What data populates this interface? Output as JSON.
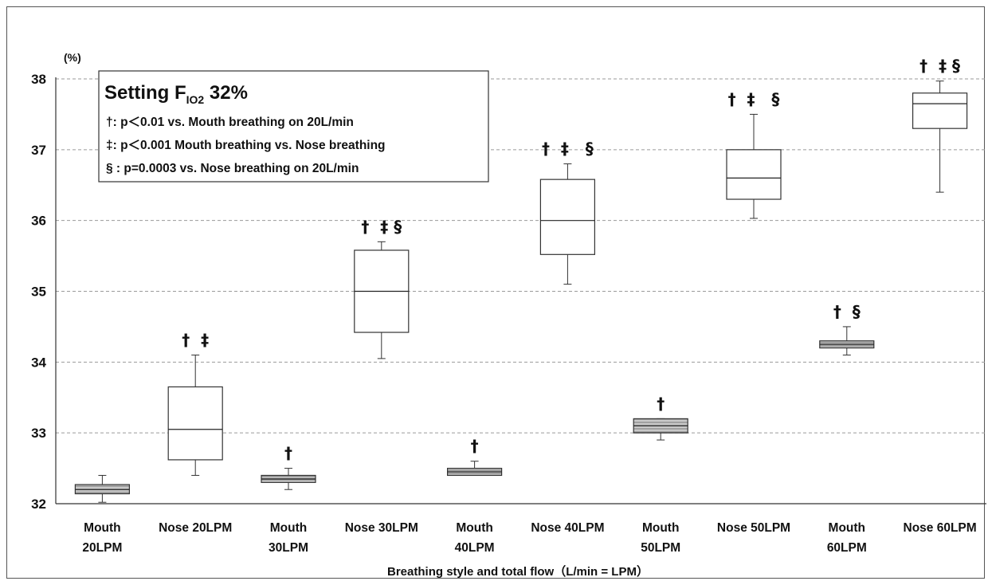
{
  "chart_data": {
    "type": "box",
    "unit_label": "(%)",
    "xlabel": "Breathing style and total flow（L/min = LPM）",
    "ylabel": "",
    "ylim": [
      32,
      38
    ],
    "yticks": [
      32,
      33,
      34,
      35,
      36,
      37,
      38
    ],
    "grid": true,
    "categories": [
      {
        "lines": [
          "Mouth",
          "20LPM"
        ]
      },
      {
        "lines": [
          "Nose 20LPM"
        ]
      },
      {
        "lines": [
          "Mouth",
          "30LPM"
        ]
      },
      {
        "lines": [
          "Nose 30LPM"
        ]
      },
      {
        "lines": [
          "Mouth",
          "40LPM"
        ]
      },
      {
        "lines": [
          "Nose 40LPM"
        ]
      },
      {
        "lines": [
          "Mouth",
          "50LPM"
        ]
      },
      {
        "lines": [
          "Nose 50LPM"
        ]
      },
      {
        "lines": [
          "Mouth",
          "60LPM"
        ]
      },
      {
        "lines": [
          "Nose 60LPM"
        ]
      }
    ],
    "boxes": [
      {
        "min": 32.02,
        "q1": 32.14,
        "median": 32.2,
        "q3": 32.27,
        "max": 32.4,
        "style": "hatched",
        "marks": ""
      },
      {
        "min": 32.4,
        "q1": 32.62,
        "median": 33.05,
        "q3": 33.65,
        "max": 34.1,
        "style": "open",
        "marks": "†  ‡"
      },
      {
        "min": 32.2,
        "q1": 32.3,
        "median": 32.35,
        "q3": 32.4,
        "max": 32.5,
        "style": "hatched",
        "marks": "†"
      },
      {
        "min": 34.05,
        "q1": 34.42,
        "median": 35.0,
        "q3": 35.58,
        "max": 35.7,
        "style": "open",
        "marks": "†  ‡ §"
      },
      {
        "min": 32.4,
        "q1": 32.4,
        "median": 32.45,
        "q3": 32.5,
        "max": 32.6,
        "style": "hatched",
        "marks": "†"
      },
      {
        "min": 35.1,
        "q1": 35.52,
        "median": 36.0,
        "q3": 36.58,
        "max": 36.8,
        "style": "open",
        "marks": "†  ‡   §"
      },
      {
        "min": 32.9,
        "q1": 33.0,
        "median": 33.1,
        "q3": 33.2,
        "max": 33.2,
        "style": "hatched",
        "marks": "†"
      },
      {
        "min": 36.03,
        "q1": 36.3,
        "median": 36.6,
        "q3": 37.0,
        "max": 37.5,
        "style": "open",
        "marks": "†  ‡   §"
      },
      {
        "min": 34.1,
        "q1": 34.2,
        "median": 34.25,
        "q3": 34.3,
        "max": 34.5,
        "style": "hatched",
        "marks": "†  §"
      },
      {
        "min": 36.4,
        "q1": 37.3,
        "median": 37.65,
        "q3": 37.8,
        "max": 37.97,
        "style": "open",
        "marks": "†  ‡ §"
      }
    ],
    "legend": {
      "title_main": "Setting F",
      "title_sub": "IO2",
      "title_value": " 32%",
      "lines": [
        "†:  p＜0.01 vs. Mouth breathing on 20L/min",
        "‡:  p＜0.001 Mouth breathing vs. Nose breathing",
        "§ : p=0.0003 vs. Nose breathing on 20L/min"
      ],
      "position": "top-left"
    }
  }
}
